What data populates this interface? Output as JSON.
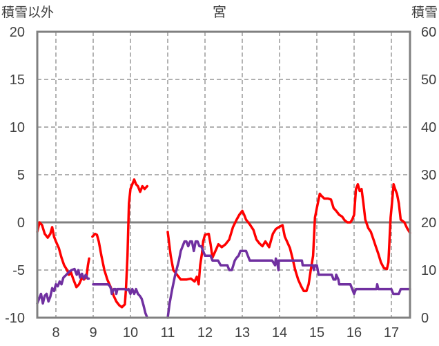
{
  "chart_data": {
    "type": "line",
    "title": "宮",
    "left_axis_label": "積雪以外",
    "right_axis_label": "積雪",
    "left_ylim": [
      -10,
      20
    ],
    "left_yticks": [
      "20",
      "15",
      "10",
      "5",
      "0",
      "-5",
      "-10"
    ],
    "right_ylim": [
      0,
      60
    ],
    "right_yticks": [
      "60",
      "50",
      "40",
      "30",
      "20",
      "10",
      "0"
    ],
    "xlim": [
      7.5,
      17.5
    ],
    "xticks": [
      "8",
      "9",
      "10",
      "11",
      "12",
      "13",
      "14",
      "15",
      "16",
      "17"
    ],
    "grid": true,
    "colors": {
      "red": "#ff0000",
      "purple": "#7030a0",
      "axis": "#808080",
      "grid": "#808080"
    },
    "series": [
      {
        "axis": "left",
        "color": "#ff0000",
        "segments": [
          [
            [
              7.5,
              -1.0
            ],
            [
              7.56,
              0.0
            ],
            [
              7.63,
              -0.3
            ],
            [
              7.7,
              -1.2
            ],
            [
              7.78,
              -1.6
            ],
            [
              7.85,
              -1.2
            ],
            [
              7.9,
              -0.5
            ],
            [
              7.95,
              -1.5
            ],
            [
              8.0,
              -2.0
            ],
            [
              8.08,
              -2.7
            ],
            [
              8.15,
              -3.7
            ],
            [
              8.22,
              -4.5
            ],
            [
              8.3,
              -5.0
            ],
            [
              8.35,
              -5.5
            ],
            [
              8.4,
              -5.2
            ],
            [
              8.47,
              -6.0
            ],
            [
              8.55,
              -6.8
            ],
            [
              8.62,
              -6.5
            ],
            [
              8.7,
              -5.8
            ],
            [
              8.75,
              -6.0
            ],
            [
              8.82,
              -5.7
            ],
            [
              8.86,
              -4.5
            ],
            [
              8.89,
              -3.8
            ]
          ],
          [
            [
              8.98,
              -1.5
            ],
            [
              9.05,
              -1.2
            ],
            [
              9.1,
              -1.3
            ],
            [
              9.15,
              -2.0
            ],
            [
              9.22,
              -3.5
            ],
            [
              9.3,
              -5.0
            ],
            [
              9.38,
              -6.0
            ],
            [
              9.47,
              -6.8
            ],
            [
              9.55,
              -7.7
            ],
            [
              9.62,
              -8.3
            ],
            [
              9.7,
              -8.7
            ],
            [
              9.77,
              -8.9
            ],
            [
              9.85,
              -8.6
            ],
            [
              9.88,
              -7.0
            ],
            [
              9.92,
              -3.5
            ],
            [
              9.96,
              2.0
            ],
            [
              10.0,
              3.5
            ],
            [
              10.05,
              4.0
            ],
            [
              10.1,
              4.5
            ],
            [
              10.15,
              4.0
            ],
            [
              10.2,
              3.8
            ],
            [
              10.26,
              3.2
            ],
            [
              10.32,
              3.8
            ],
            [
              10.38,
              3.5
            ],
            [
              10.45,
              3.8
            ]
          ],
          [
            [
              11.0,
              -1.0
            ],
            [
              11.08,
              -3.5
            ],
            [
              11.15,
              -5.0
            ],
            [
              11.25,
              -5.5
            ],
            [
              11.35,
              -6.0
            ],
            [
              11.5,
              -6.0
            ],
            [
              11.62,
              -5.9
            ],
            [
              11.72,
              -6.2
            ],
            [
              11.78,
              -5.7
            ],
            [
              11.83,
              -6.5
            ],
            [
              11.87,
              -4.5
            ],
            [
              11.92,
              -3.2
            ],
            [
              11.95,
              -2.0
            ],
            [
              12.0,
              -1.3
            ],
            [
              12.1,
              -1.2
            ],
            [
              12.15,
              -2.3
            ],
            [
              12.2,
              -3.7
            ],
            [
              12.28,
              -3.0
            ],
            [
              12.36,
              -2.3
            ],
            [
              12.45,
              -2.6
            ],
            [
              12.55,
              -2.3
            ],
            [
              12.65,
              -1.8
            ],
            [
              12.75,
              -0.5
            ],
            [
              12.85,
              0.3
            ],
            [
              12.92,
              0.8
            ],
            [
              13.0,
              1.2
            ],
            [
              13.05,
              0.8
            ],
            [
              13.1,
              0.3
            ],
            [
              13.2,
              -0.2
            ],
            [
              13.3,
              -0.8
            ],
            [
              13.38,
              -1.8
            ],
            [
              13.46,
              -2.2
            ],
            [
              13.54,
              -2.5
            ],
            [
              13.62,
              -2.0
            ],
            [
              13.72,
              -2.6
            ],
            [
              13.82,
              -1.2
            ],
            [
              13.9,
              -0.7
            ],
            [
              13.98,
              -0.5
            ],
            [
              14.08,
              -0.3
            ],
            [
              14.14,
              -1.5
            ],
            [
              14.2,
              -2.0
            ],
            [
              14.28,
              -2.7
            ],
            [
              14.35,
              -3.8
            ],
            [
              14.42,
              -5.0
            ],
            [
              14.5,
              -6.0
            ],
            [
              14.58,
              -6.7
            ],
            [
              14.65,
              -7.2
            ],
            [
              14.72,
              -7.2
            ],
            [
              14.78,
              -6.5
            ],
            [
              14.83,
              -5.2
            ],
            [
              14.9,
              -3.5
            ],
            [
              14.95,
              0.5
            ],
            [
              15.0,
              1.5
            ],
            [
              15.08,
              3.0
            ],
            [
              15.12,
              2.8
            ],
            [
              15.2,
              2.5
            ],
            [
              15.3,
              2.5
            ],
            [
              15.38,
              2.4
            ],
            [
              15.45,
              1.5
            ],
            [
              15.52,
              1.2
            ],
            [
              15.6,
              0.8
            ],
            [
              15.68,
              0.6
            ],
            [
              15.75,
              0.2
            ],
            [
              15.82,
              0.0
            ],
            [
              15.9,
              0.0
            ],
            [
              15.95,
              0.3
            ],
            [
              16.0,
              0.8
            ],
            [
              16.05,
              3.5
            ],
            [
              16.1,
              4.0
            ],
            [
              16.15,
              3.3
            ],
            [
              16.2,
              3.5
            ],
            [
              16.25,
              2.0
            ],
            [
              16.3,
              0.3
            ],
            [
              16.38,
              -0.6
            ],
            [
              16.45,
              -1.0
            ],
            [
              16.52,
              -1.8
            ],
            [
              16.58,
              -2.5
            ],
            [
              16.65,
              -3.3
            ],
            [
              16.72,
              -4.2
            ],
            [
              16.8,
              -4.8
            ],
            [
              16.88,
              -4.9
            ],
            [
              16.92,
              -4.2
            ],
            [
              16.98,
              0.5
            ],
            [
              17.02,
              2.2
            ],
            [
              17.06,
              4.0
            ],
            [
              17.1,
              3.5
            ],
            [
              17.15,
              3.0
            ],
            [
              17.2,
              2.0
            ],
            [
              17.25,
              0.3
            ],
            [
              17.35,
              0.0
            ],
            [
              17.42,
              -0.6
            ],
            [
              17.5,
              -1.1
            ]
          ]
        ]
      },
      {
        "axis": "left",
        "color": "#7030a0",
        "segments": [
          [
            [
              7.5,
              -8.5
            ],
            [
              7.55,
              -8.0
            ],
            [
              7.6,
              -7.5
            ],
            [
              7.65,
              -8.5
            ],
            [
              7.7,
              -7.7
            ],
            [
              7.75,
              -7.5
            ],
            [
              7.8,
              -8.3
            ],
            [
              7.85,
              -7.8
            ],
            [
              7.9,
              -6.9
            ],
            [
              7.95,
              -7.2
            ],
            [
              8.0,
              -6.5
            ],
            [
              8.05,
              -6.7
            ],
            [
              8.1,
              -6.2
            ],
            [
              8.15,
              -6.5
            ],
            [
              8.2,
              -5.8
            ],
            [
              8.28,
              -5.5
            ],
            [
              8.35,
              -5.2
            ],
            [
              8.42,
              -5.0
            ],
            [
              8.5,
              -4.9
            ],
            [
              8.56,
              -5.5
            ],
            [
              8.6,
              -5.0
            ],
            [
              8.65,
              -5.8
            ],
            [
              8.7,
              -5.4
            ],
            [
              8.75,
              -5.9
            ],
            [
              8.8,
              -5.5
            ],
            [
              8.85,
              -5.9
            ],
            [
              8.88,
              -5.9
            ]
          ],
          [
            [
              9.0,
              -6.5
            ],
            [
              9.4,
              -6.5
            ],
            [
              9.45,
              -6.7
            ],
            [
              9.48,
              -7.0
            ],
            [
              9.5,
              -7.5
            ],
            [
              9.55,
              -7.0
            ],
            [
              9.6,
              -7.0
            ],
            [
              9.62,
              -7.5
            ],
            [
              9.65,
              -7.0
            ],
            [
              9.7,
              -7.0
            ],
            [
              9.75,
              -7.0
            ],
            [
              9.8,
              -7.0
            ],
            [
              9.85,
              -7.0
            ],
            [
              9.9,
              -7.1
            ],
            [
              9.95,
              -7.0
            ],
            [
              10.0,
              -7.5
            ],
            [
              10.05,
              -7.0
            ],
            [
              10.1,
              -7.5
            ],
            [
              10.15,
              -7.0
            ],
            [
              10.2,
              -7.5
            ],
            [
              10.25,
              -7.7
            ],
            [
              10.3,
              -8.0
            ],
            [
              10.35,
              -8.7
            ],
            [
              10.4,
              -9.5
            ],
            [
              10.45,
              -10.0
            ]
          ],
          [
            [
              11.0,
              -10.0
            ],
            [
              11.05,
              -8.5
            ],
            [
              11.12,
              -7.0
            ],
            [
              11.2,
              -5.5
            ],
            [
              11.3,
              -4.0
            ],
            [
              11.35,
              -3.0
            ],
            [
              11.4,
              -2.5
            ],
            [
              11.45,
              -2.0
            ],
            [
              11.5,
              -2.0
            ],
            [
              11.55,
              -2.5
            ],
            [
              11.6,
              -2.0
            ],
            [
              11.65,
              -2.0
            ],
            [
              11.7,
              -3.0
            ],
            [
              11.75,
              -2.0
            ],
            [
              11.8,
              -2.0
            ],
            [
              11.85,
              -2.5
            ],
            [
              11.9,
              -2.5
            ],
            [
              11.95,
              -3.0
            ],
            [
              12.0,
              -3.5
            ],
            [
              12.1,
              -3.5
            ],
            [
              12.15,
              -3.5
            ],
            [
              12.2,
              -4.0
            ],
            [
              12.3,
              -4.0
            ],
            [
              12.35,
              -4.0
            ],
            [
              12.42,
              -4.5
            ],
            [
              12.5,
              -4.5
            ],
            [
              12.6,
              -4.5
            ],
            [
              12.65,
              -5.0
            ],
            [
              12.72,
              -5.0
            ],
            [
              12.8,
              -4.0
            ],
            [
              12.85,
              -3.7
            ],
            [
              12.9,
              -3.5
            ],
            [
              12.95,
              -3.0
            ],
            [
              13.0,
              -3.0
            ],
            [
              13.1,
              -3.0
            ],
            [
              13.2,
              -4.0
            ],
            [
              13.6,
              -4.0
            ],
            [
              13.8,
              -4.0
            ],
            [
              13.88,
              -4.5
            ],
            [
              13.9,
              -3.8
            ],
            [
              13.92,
              -4.0
            ],
            [
              13.95,
              -4.5
            ],
            [
              13.97,
              -5.0
            ],
            [
              13.98,
              -4.0
            ],
            [
              14.0,
              -4.0
            ],
            [
              14.6,
              -4.0
            ],
            [
              14.62,
              -4.5
            ],
            [
              14.9,
              -4.5
            ],
            [
              14.92,
              -5.0
            ],
            [
              14.95,
              -4.5
            ],
            [
              15.0,
              -4.5
            ],
            [
              15.05,
              -5.5
            ],
            [
              15.1,
              -5.5
            ],
            [
              15.3,
              -5.5
            ],
            [
              15.4,
              -5.5
            ],
            [
              15.45,
              -6.0
            ],
            [
              15.5,
              -6.0
            ],
            [
              15.52,
              -5.5
            ],
            [
              15.58,
              -6.0
            ],
            [
              15.6,
              -6.5
            ],
            [
              15.9,
              -6.5
            ],
            [
              15.95,
              -7.0
            ],
            [
              16.0,
              -7.5
            ],
            [
              16.05,
              -7.0
            ],
            [
              16.6,
              -7.0
            ],
            [
              16.62,
              -6.5
            ],
            [
              16.65,
              -7.0
            ],
            [
              17.0,
              -7.0
            ],
            [
              17.05,
              -7.5
            ],
            [
              17.2,
              -7.5
            ],
            [
              17.25,
              -7.0
            ],
            [
              17.5,
              -7.0
            ]
          ]
        ]
      }
    ]
  }
}
